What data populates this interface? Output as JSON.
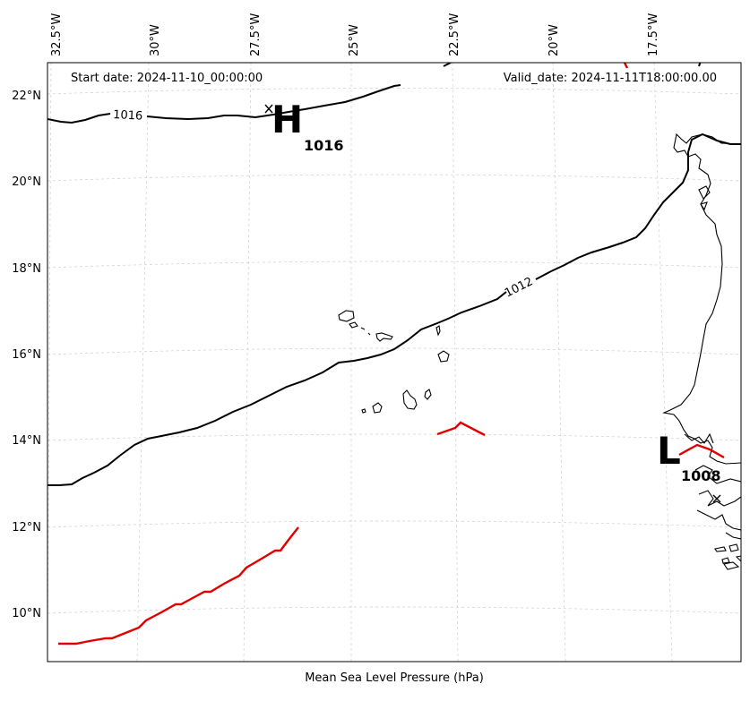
{
  "map": {
    "start_date": "Start date: 2024-11-10_00:00:00",
    "valid_date": "Valid_date: 2024-11-11T18:00:00.00",
    "xlabel": "Mean Sea Level Pressure (hPa)",
    "lon_labels": [
      "32.5°W",
      "30°W",
      "27.5°W",
      "25°W",
      "22.5°W",
      "20°W",
      "17.5°W"
    ],
    "lat_labels": [
      "22°N",
      "20°N",
      "18°N",
      "16°N",
      "14°N",
      "12°N",
      "10°N"
    ],
    "contour_labels": [
      "1016",
      "1012"
    ],
    "centers": [
      {
        "letter": "H",
        "value": "1016"
      },
      {
        "letter": "L",
        "value": "1008"
      }
    ],
    "colors": {
      "contour": "#000000",
      "front": "#e00000",
      "coastline": "#000000",
      "grid": "#cfcfcf"
    }
  }
}
